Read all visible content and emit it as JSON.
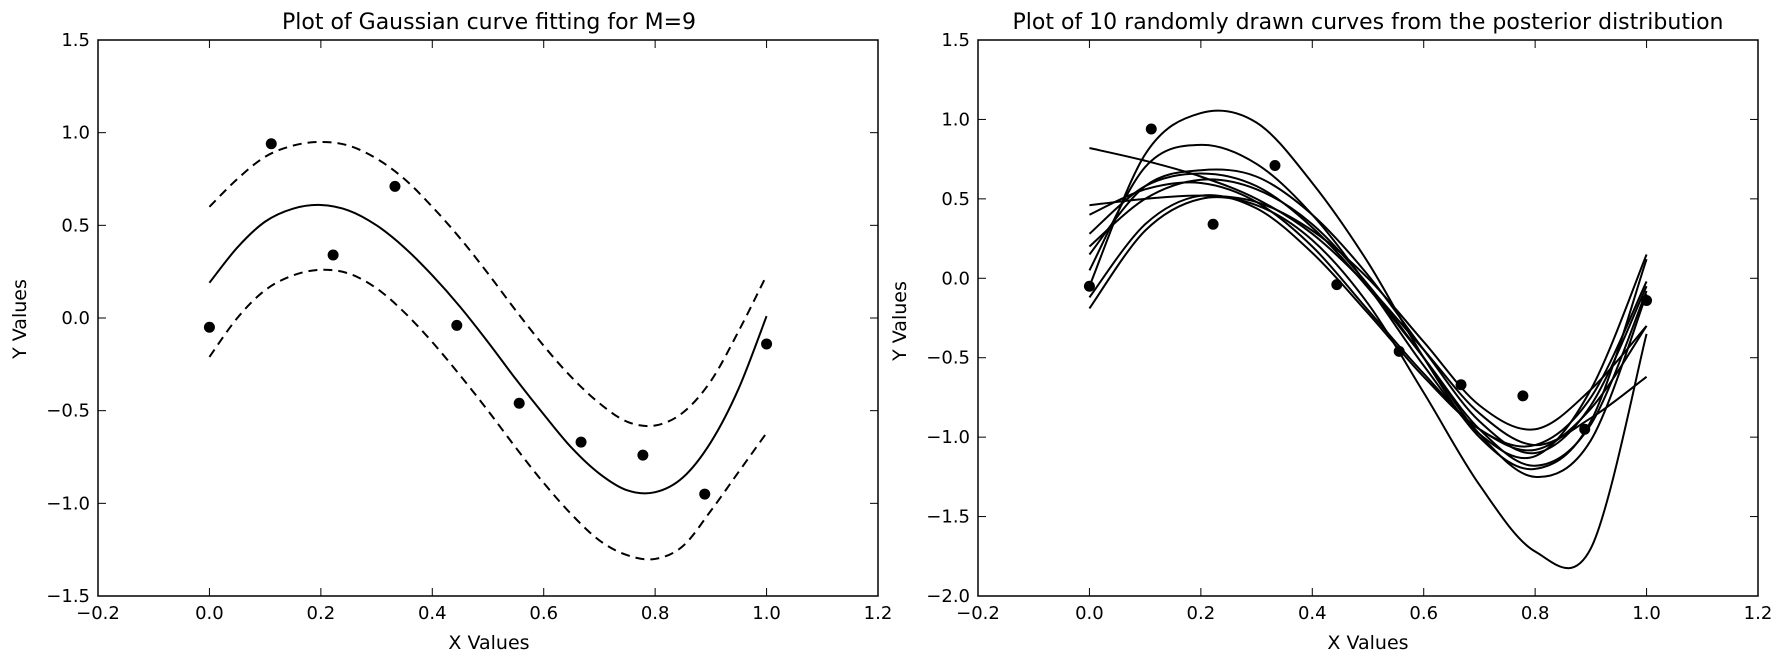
{
  "chart_data": [
    {
      "type": "line",
      "title": "Plot of Gaussian curve fitting for M=9",
      "xlabel": "X Values",
      "ylabel": "Y Values",
      "xlim": [
        -0.2,
        1.2
      ],
      "ylim": [
        -1.5,
        1.5
      ],
      "xticks": [
        "−0.2",
        "0.0",
        "0.2",
        "0.4",
        "0.6",
        "0.8",
        "1.0",
        "1.2"
      ],
      "yticks": [
        "−1.5",
        "−1.0",
        "−0.5",
        "0.0",
        "0.5",
        "1.0",
        "1.5"
      ],
      "grid": false,
      "points": {
        "x": [
          0.0,
          0.111,
          0.222,
          0.333,
          0.444,
          0.556,
          0.667,
          0.778,
          0.889,
          1.0
        ],
        "y": [
          -0.05,
          0.94,
          0.34,
          0.71,
          -0.04,
          -0.46,
          -0.67,
          -0.74,
          -0.95,
          -0.14
        ]
      },
      "series": [
        {
          "style": "solid",
          "x": [
            0.0,
            0.05,
            0.1,
            0.15,
            0.2,
            0.25,
            0.3,
            0.35,
            0.4,
            0.45,
            0.5,
            0.55,
            0.6,
            0.65,
            0.7,
            0.75,
            0.8,
            0.85,
            0.9,
            0.95,
            1.0
          ],
          "y": [
            0.19,
            0.38,
            0.52,
            0.59,
            0.61,
            0.58,
            0.5,
            0.38,
            0.23,
            0.06,
            -0.13,
            -0.33,
            -0.52,
            -0.7,
            -0.84,
            -0.93,
            -0.94,
            -0.86,
            -0.67,
            -0.38,
            0.01
          ]
        },
        {
          "style": "dashed",
          "x": [
            0.0,
            0.05,
            0.1,
            0.15,
            0.2,
            0.25,
            0.3,
            0.35,
            0.4,
            0.45,
            0.5,
            0.55,
            0.6,
            0.65,
            0.7,
            0.75,
            0.8,
            0.85,
            0.9,
            0.95,
            1.0
          ],
          "y": [
            0.6,
            0.75,
            0.87,
            0.93,
            0.95,
            0.93,
            0.86,
            0.75,
            0.6,
            0.43,
            0.24,
            0.04,
            -0.15,
            -0.32,
            -0.46,
            -0.56,
            -0.58,
            -0.51,
            -0.34,
            -0.07,
            0.23
          ]
        },
        {
          "style": "dashed",
          "x": [
            0.0,
            0.05,
            0.1,
            0.15,
            0.2,
            0.25,
            0.3,
            0.35,
            0.4,
            0.45,
            0.5,
            0.55,
            0.6,
            0.65,
            0.7,
            0.75,
            0.8,
            0.85,
            0.9,
            0.95,
            1.0
          ],
          "y": [
            -0.21,
            0.0,
            0.15,
            0.23,
            0.26,
            0.24,
            0.16,
            0.03,
            -0.13,
            -0.31,
            -0.5,
            -0.7,
            -0.89,
            -1.06,
            -1.2,
            -1.28,
            -1.3,
            -1.23,
            -1.04,
            -0.83,
            -0.62
          ]
        }
      ]
    },
    {
      "type": "line",
      "title": "Plot of 10 randomly drawn curves from the posterior distribution",
      "xlabel": "X Values",
      "ylabel": "Y Values",
      "xlim": [
        -0.2,
        1.2
      ],
      "ylim": [
        -2.0,
        1.5
      ],
      "xticks": [
        "−0.2",
        "0.0",
        "0.2",
        "0.4",
        "0.6",
        "0.8",
        "1.0",
        "1.2"
      ],
      "yticks": [
        "−2.0",
        "−1.5",
        "−1.0",
        "−0.5",
        "0.0",
        "0.5",
        "1.0",
        "1.5"
      ],
      "grid": false,
      "points": {
        "x": [
          0.0,
          0.111,
          0.222,
          0.333,
          0.444,
          0.556,
          0.667,
          0.778,
          0.889,
          1.0
        ],
        "y": [
          -0.05,
          0.94,
          0.34,
          0.71,
          -0.04,
          -0.46,
          -0.67,
          -0.74,
          -0.95,
          -0.14
        ]
      },
      "series": [
        {
          "x": [
            0.0,
            0.1,
            0.2,
            0.3,
            0.4,
            0.5,
            0.6,
            0.7,
            0.8,
            0.9,
            1.0
          ],
          "y": [
            -0.05,
            0.78,
            1.04,
            0.98,
            0.6,
            0.1,
            -0.5,
            -1.0,
            -1.2,
            -0.9,
            0.12
          ]
        },
        {
          "x": [
            0.0,
            0.1,
            0.2,
            0.3,
            0.4,
            0.5,
            0.6,
            0.7,
            0.8,
            0.9,
            1.0
          ],
          "y": [
            0.05,
            0.7,
            0.84,
            0.72,
            0.4,
            -0.05,
            -0.55,
            -0.98,
            -1.12,
            -0.7,
            0.15
          ]
        },
        {
          "x": [
            0.0,
            0.1,
            0.2,
            0.3,
            0.4,
            0.5,
            0.6,
            0.7,
            0.8,
            0.9,
            1.0
          ],
          "y": [
            0.82,
            0.74,
            0.64,
            0.5,
            0.28,
            -0.05,
            -0.45,
            -0.85,
            -1.05,
            -0.88,
            -0.62
          ]
        },
        {
          "x": [
            0.0,
            0.1,
            0.2,
            0.3,
            0.4,
            0.5,
            0.6,
            0.7,
            0.8,
            0.9,
            1.0
          ],
          "y": [
            0.4,
            0.56,
            0.6,
            0.48,
            0.2,
            -0.2,
            -0.6,
            -0.95,
            -1.05,
            -0.75,
            -0.02
          ]
        },
        {
          "x": [
            0.0,
            0.1,
            0.2,
            0.3,
            0.4,
            0.5,
            0.6,
            0.7,
            0.8,
            0.9,
            1.0
          ],
          "y": [
            0.46,
            0.5,
            0.52,
            0.48,
            0.3,
            0.0,
            -0.4,
            -0.8,
            -0.95,
            -0.7,
            -0.3
          ]
        },
        {
          "x": [
            0.0,
            0.1,
            0.2,
            0.3,
            0.4,
            0.5,
            0.6,
            0.7,
            0.8,
            0.9,
            1.0
          ],
          "y": [
            0.28,
            0.58,
            0.66,
            0.58,
            0.32,
            -0.06,
            -0.5,
            -0.95,
            -1.18,
            -0.92,
            -0.08
          ]
        },
        {
          "x": [
            0.0,
            0.1,
            0.2,
            0.3,
            0.4,
            0.5,
            0.6,
            0.7,
            0.8,
            0.9,
            1.0
          ],
          "y": [
            0.15,
            0.58,
            0.68,
            0.64,
            0.4,
            0.02,
            -0.45,
            -0.9,
            -1.1,
            -0.8,
            -0.05
          ]
        },
        {
          "x": [
            0.0,
            0.1,
            0.2,
            0.3,
            0.4,
            0.5,
            0.6,
            0.7,
            0.8,
            0.9,
            1.0
          ],
          "y": [
            -0.12,
            0.34,
            0.52,
            0.44,
            0.16,
            -0.22,
            -0.62,
            -0.95,
            -1.08,
            -0.82,
            -0.3
          ]
        },
        {
          "x": [
            0.0,
            0.1,
            0.2,
            0.3,
            0.4,
            0.5,
            0.6,
            0.7,
            0.8,
            0.9,
            1.0
          ],
          "y": [
            -0.19,
            0.3,
            0.5,
            0.46,
            0.24,
            -0.16,
            -0.72,
            -1.3,
            -1.72,
            -1.7,
            -0.35
          ]
        },
        {
          "x": [
            0.0,
            0.1,
            0.2,
            0.3,
            0.4,
            0.5,
            0.6,
            0.7,
            0.8,
            0.9,
            1.0
          ],
          "y": [
            0.2,
            0.5,
            0.62,
            0.56,
            0.34,
            -0.04,
            -0.5,
            -0.98,
            -1.25,
            -1.02,
            -0.1
          ]
        }
      ]
    }
  ]
}
